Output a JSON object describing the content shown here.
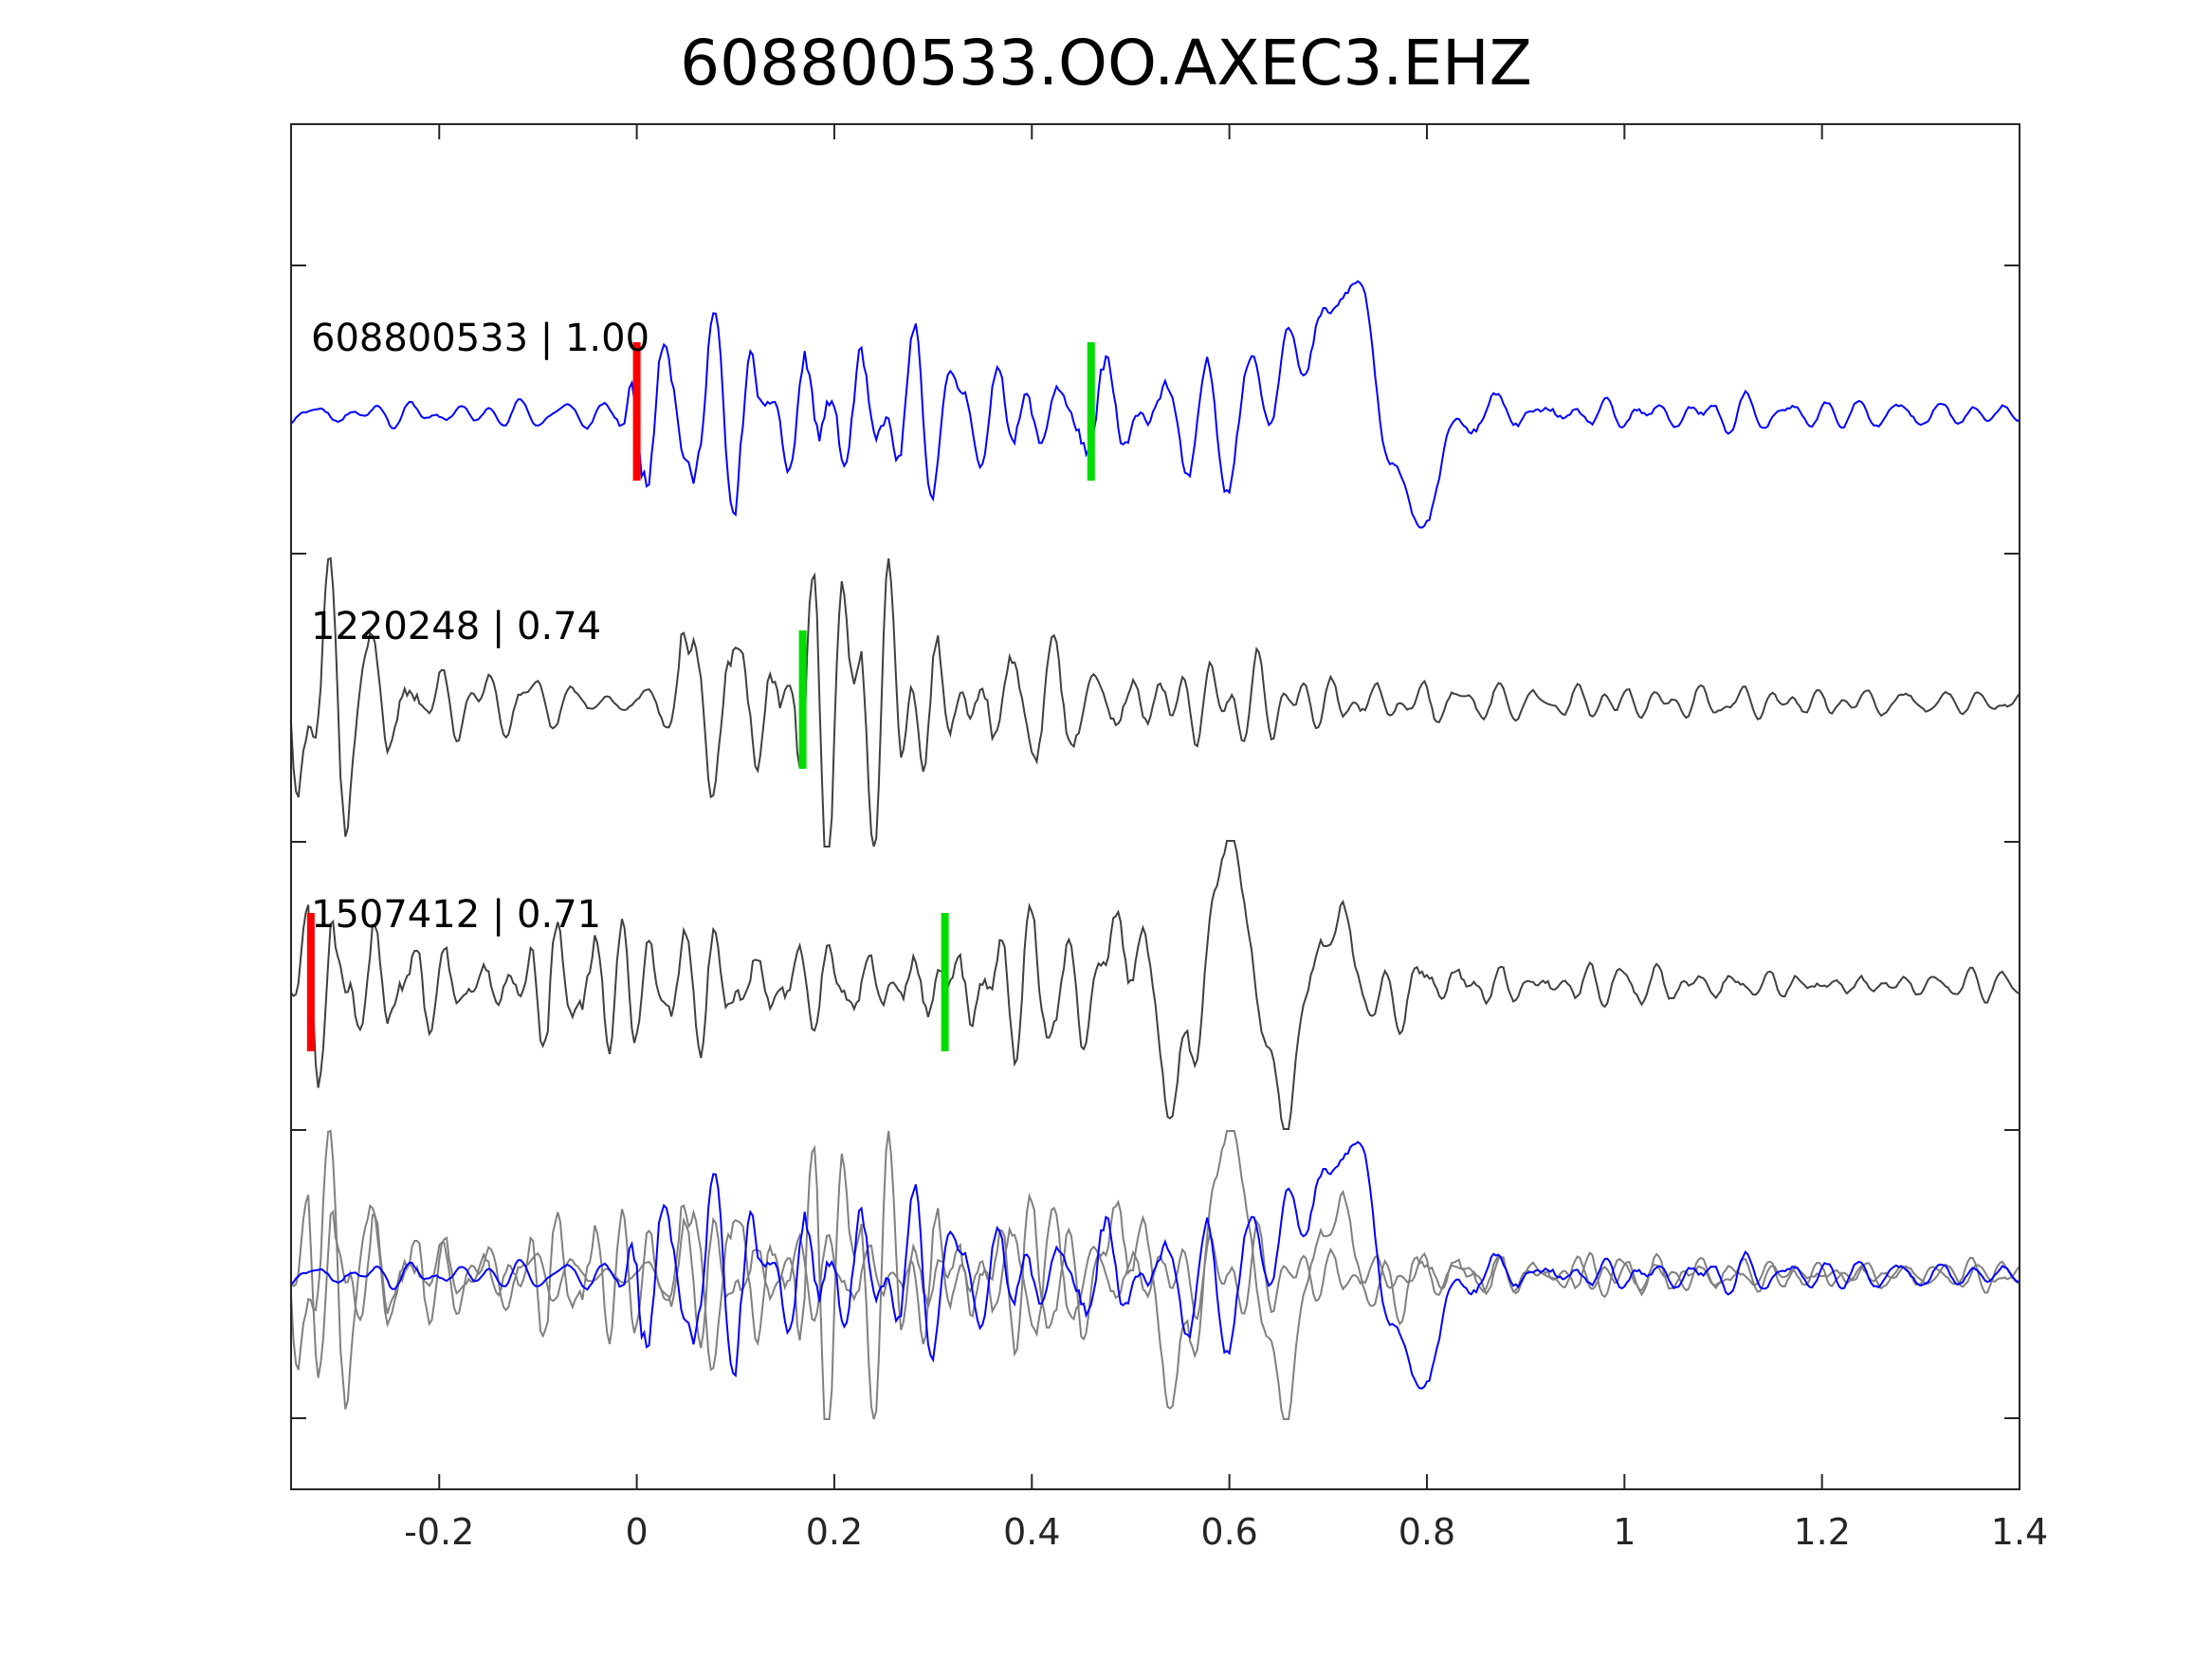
{
  "chart_data": {
    "type": "line",
    "title": "608800533.OO.AXEC3.EHZ",
    "xlabel": "",
    "ylabel": "",
    "xlim": [
      -0.35,
      1.4
    ],
    "x_ticks": [
      "-0.2",
      "0",
      "0.2",
      "0.4",
      "0.6",
      "0.8",
      "1",
      "1.2",
      "1.4"
    ],
    "x_tick_values": [
      -0.2,
      0,
      0.2,
      0.4,
      0.6,
      0.8,
      1,
      1.2,
      1.4
    ],
    "grid": false,
    "colors": {
      "main": "#0000ff",
      "template": "#404040",
      "overlay": "#808080",
      "p_pick": "#ff0000",
      "s_pick": "#00dd00"
    },
    "traces": [
      {
        "name": "608800533 | 1.00",
        "role": "main",
        "p_pick": 0.0,
        "s_pick": 0.46
      },
      {
        "name": "1220248 | 0.74",
        "role": "template",
        "p_pick": null,
        "s_pick": 0.168
      },
      {
        "name": "1507412 | 0.71",
        "role": "template",
        "p_pick": -0.33,
        "s_pick": 0.312
      }
    ],
    "stack": {
      "role": "overlay"
    }
  }
}
